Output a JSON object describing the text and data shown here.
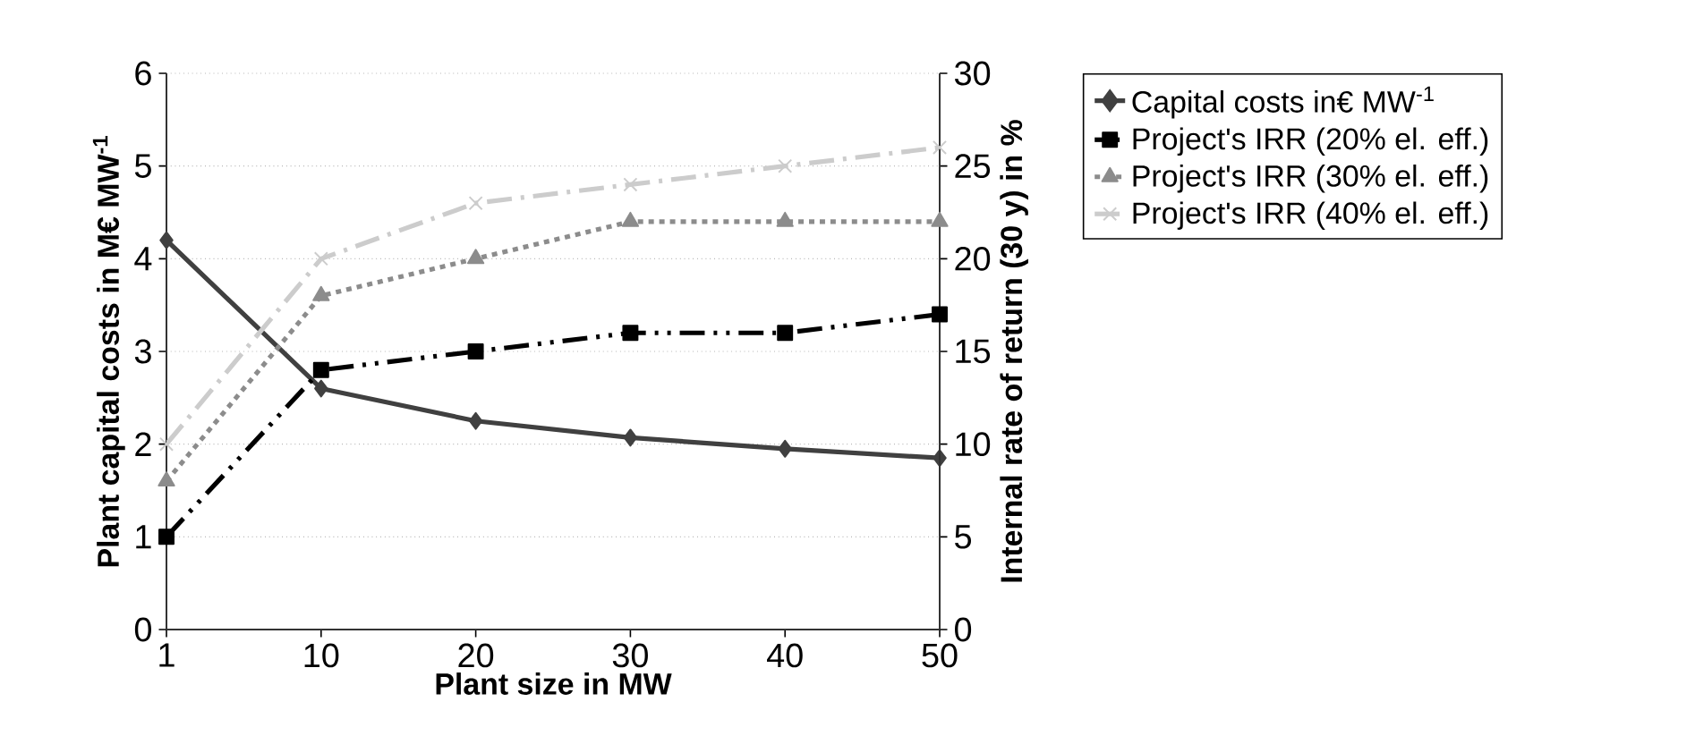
{
  "chart_data": {
    "type": "line",
    "xlabel": "Plant size in MW",
    "ylabel": "Plant capital costs in M€ MW$^{-1}$",
    "y2label": "Internal rate of return (30 y) in %",
    "categories": [
      "1",
      "10",
      "20",
      "30",
      "40",
      "50"
    ],
    "series": [
      {
        "name": "Capital costs in€ MW$^{-1}$",
        "color": "#404040",
        "marker": "diamond",
        "line_style": "solid",
        "values": [
          4.2,
          2.6,
          2.25,
          2.07,
          1.95,
          1.85
        ]
      },
      {
        "name": "Project's IRR (20% el. eff.)",
        "color": "#000000",
        "marker": "square",
        "line_style": "dashdotdot",
        "axis": "y2",
        "values": [
          5,
          14,
          15,
          16,
          16,
          17
        ]
      },
      {
        "name": "Project's IRR (30% el. eff.)",
        "color": "#8c8c8c",
        "marker": "triangle",
        "line_style": "dashed",
        "axis": "y2",
        "values": [
          8,
          18,
          20,
          22,
          22,
          22
        ]
      },
      {
        "name": "Project's IRR (40% el. eff.)",
        "color": "#cccccc",
        "marker": "cross",
        "line_style": "dashdot",
        "axis": "y2",
        "values": [
          10,
          20,
          23,
          24,
          25,
          26
        ]
      }
    ],
    "ylim": [
      0,
      6
    ],
    "yticks": [
      0,
      1,
      2,
      3,
      4,
      5,
      6
    ],
    "y2lim": [
      0,
      30
    ],
    "y2ticks": [
      0,
      5,
      10,
      15,
      20,
      25,
      30
    ],
    "grid": "y",
    "legend": "right"
  }
}
